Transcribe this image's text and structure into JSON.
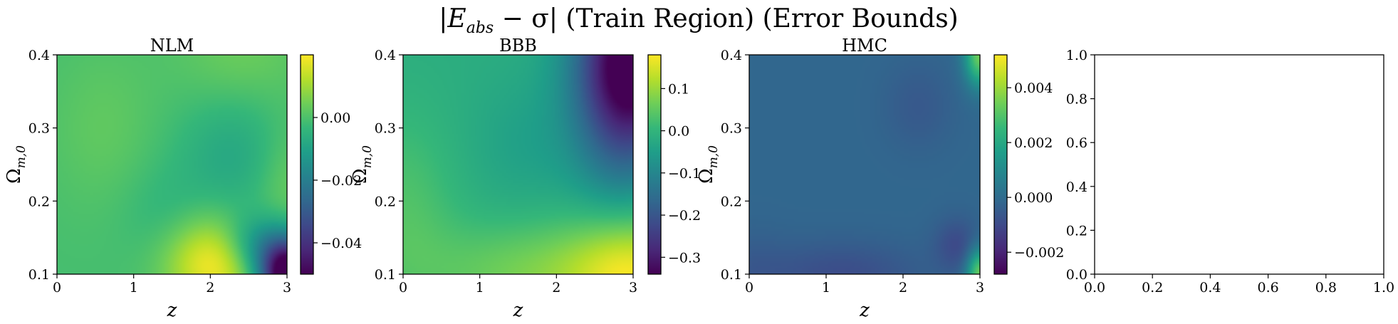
{
  "figure": {
    "title": "|E_abs − σ| (Train Region) (Error Bounds)",
    "title_parts": {
      "bar_left": "|E",
      "sub": "abs",
      "minus_sigma": " − σ|",
      "rest": " (Train Region) (Error Bounds)"
    }
  },
  "colormap": "viridis",
  "colormap_stops": [
    "#440154",
    "#482878",
    "#3e4989",
    "#31688e",
    "#26828e",
    "#1f9e89",
    "#35b779",
    "#6ece58",
    "#b5de2b",
    "#fde725"
  ],
  "chart_data": [
    {
      "type": "heatmap",
      "title": "NLM",
      "xlabel": "z",
      "ylabel": "Ω_{m,0}",
      "xlim": [
        0,
        3
      ],
      "ylim": [
        0.1,
        0.4
      ],
      "x_ticks": [
        "0",
        "1",
        "2",
        "3"
      ],
      "y_ticks": [
        "0.1",
        "0.2",
        "0.3",
        "0.4"
      ],
      "colorbar": {
        "range": [
          -0.05,
          0.02
        ],
        "ticks": [
          {
            "v": 0.0,
            "label": "0.00"
          },
          {
            "v": -0.02,
            "label": "−0.02"
          },
          {
            "v": -0.04,
            "label": "−0.04"
          }
        ]
      },
      "field": {
        "base": 0.7,
        "bumps": [
          {
            "x": 2.05,
            "y": 0.115,
            "sx": 0.45,
            "sy": 0.045,
            "a": 0.3
          },
          {
            "x": 3.0,
            "y": 0.1,
            "sx": 0.25,
            "sy": 0.035,
            "a": -0.85
          },
          {
            "x": 2.6,
            "y": 0.14,
            "sx": 0.3,
            "sy": 0.03,
            "a": -0.22
          },
          {
            "x": 2.3,
            "y": 0.26,
            "sx": 0.5,
            "sy": 0.06,
            "a": -0.1
          },
          {
            "x": 1.4,
            "y": 0.18,
            "sx": 0.4,
            "sy": 0.05,
            "a": -0.05
          },
          {
            "x": 0.6,
            "y": 0.3,
            "sx": 0.5,
            "sy": 0.08,
            "a": 0.05
          },
          {
            "x": 2.4,
            "y": 0.4,
            "sx": 0.6,
            "sy": 0.05,
            "a": 0.07
          },
          {
            "x": 3.0,
            "y": 0.22,
            "sx": 0.3,
            "sy": 0.06,
            "a": 0.08
          }
        ]
      }
    },
    {
      "type": "heatmap",
      "title": "BBB",
      "xlabel": "z",
      "ylabel": "Ω_{m,0}",
      "xlim": [
        0,
        3
      ],
      "ylim": [
        0.1,
        0.4
      ],
      "x_ticks": [
        "0",
        "1",
        "2",
        "3"
      ],
      "y_ticks": [
        "0.1",
        "0.2",
        "0.3",
        "0.4"
      ],
      "colorbar": {
        "range": [
          -0.34,
          0.18
        ],
        "ticks": [
          {
            "v": 0.1,
            "label": "0.1"
          },
          {
            "v": 0.0,
            "label": "0.0"
          },
          {
            "v": -0.1,
            "label": "−0.1"
          },
          {
            "v": -0.2,
            "label": "−0.2"
          },
          {
            "v": -0.3,
            "label": "−0.3"
          }
        ]
      },
      "field": {
        "base": 0.62,
        "bumps": [
          {
            "x": 3.0,
            "y": 0.4,
            "sx": 0.5,
            "sy": 0.08,
            "a": -0.62
          },
          {
            "x": 2.85,
            "y": 0.3,
            "sx": 0.45,
            "sy": 0.09,
            "a": -0.22
          },
          {
            "x": 3.0,
            "y": 0.1,
            "sx": 0.6,
            "sy": 0.06,
            "a": 0.34
          },
          {
            "x": 1.6,
            "y": 0.1,
            "sx": 0.9,
            "sy": 0.05,
            "a": 0.16
          },
          {
            "x": 0.0,
            "y": 0.18,
            "sx": 0.5,
            "sy": 0.1,
            "a": 0.1
          },
          {
            "x": 1.6,
            "y": 0.28,
            "sx": 0.5,
            "sy": 0.06,
            "a": -0.05
          }
        ]
      }
    },
    {
      "type": "heatmap",
      "title": "HMC",
      "xlabel": "z",
      "ylabel": "Ω_{m,0}",
      "xlim": [
        0,
        3
      ],
      "ylim": [
        0.1,
        0.4
      ],
      "x_ticks": [
        "0",
        "1",
        "2",
        "3"
      ],
      "y_ticks": [
        "0.1",
        "0.2",
        "0.3",
        "0.4"
      ],
      "colorbar": {
        "range": [
          -0.0028,
          0.0052
        ],
        "ticks": [
          {
            "v": 0.004,
            "label": "0.004"
          },
          {
            "v": 0.002,
            "label": "0.002"
          },
          {
            "v": 0.0,
            "label": "0.000"
          },
          {
            "v": -0.002,
            "label": "−0.002"
          }
        ]
      },
      "field": {
        "base": 0.33,
        "bumps": [
          {
            "x": 3.0,
            "y": 0.4,
            "sx": 0.14,
            "sy": 0.03,
            "a": 0.45
          },
          {
            "x": 3.0,
            "y": 0.1,
            "sx": 0.12,
            "sy": 0.025,
            "a": 0.45
          },
          {
            "x": 2.7,
            "y": 0.14,
            "sx": 0.2,
            "sy": 0.025,
            "a": -0.1
          },
          {
            "x": 2.2,
            "y": 0.33,
            "sx": 0.3,
            "sy": 0.04,
            "a": -0.05
          },
          {
            "x": 1.2,
            "y": 0.1,
            "sx": 0.7,
            "sy": 0.03,
            "a": -0.09
          },
          {
            "x": 0.0,
            "y": 0.1,
            "sx": 0.35,
            "sy": 0.04,
            "a": -0.04
          }
        ]
      }
    },
    {
      "type": "empty",
      "xlim": [
        0,
        1
      ],
      "ylim": [
        0,
        1
      ],
      "x_ticks": [
        "0.0",
        "0.2",
        "0.4",
        "0.6",
        "0.8",
        "1.0"
      ],
      "y_ticks": [
        "0.0",
        "0.2",
        "0.4",
        "0.6",
        "0.8",
        "1.0"
      ]
    }
  ]
}
